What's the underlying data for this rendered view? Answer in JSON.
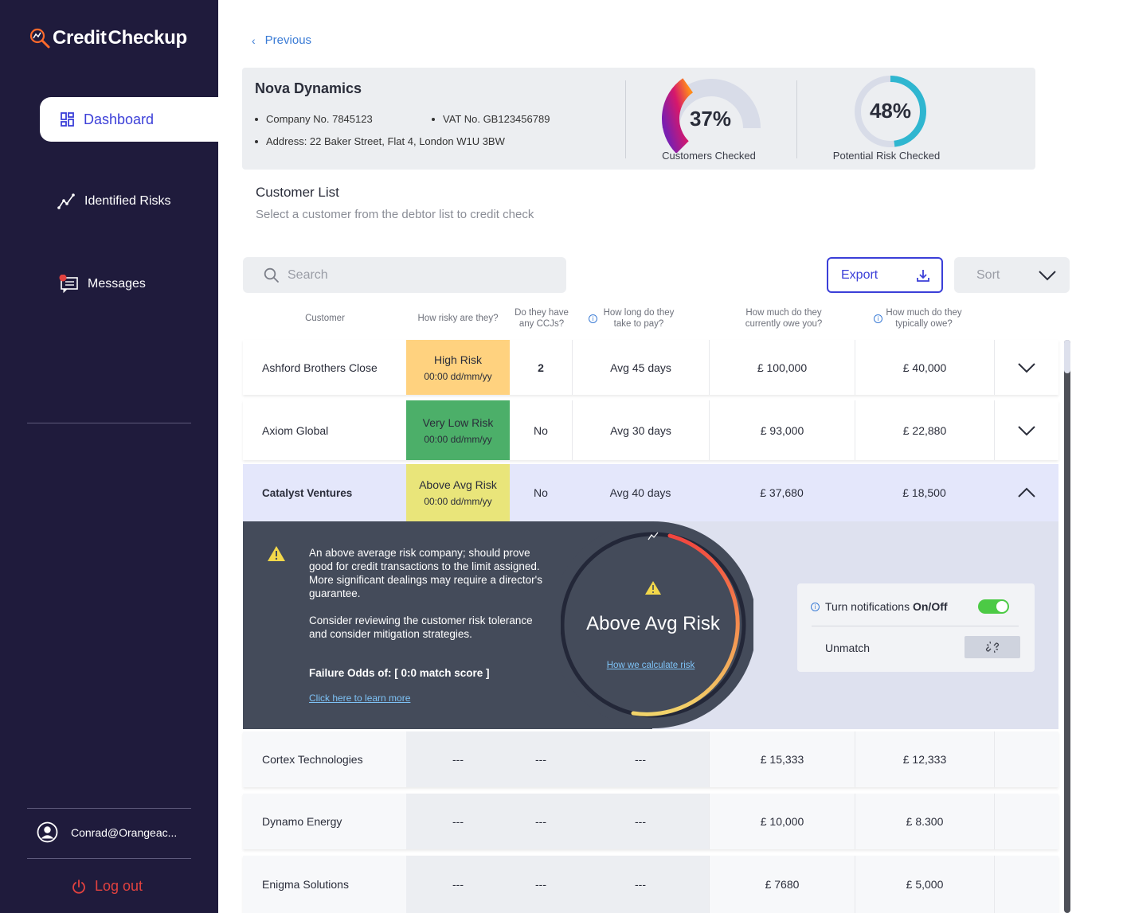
{
  "app": {
    "logo_credit": "Credit",
    "logo_checkup": "Checkup"
  },
  "sidebar": {
    "items": [
      {
        "label": "Dashboard",
        "icon": "dashboard-icon",
        "active": true
      },
      {
        "label": "Identified Risks",
        "icon": "trend-icon"
      },
      {
        "label": "Messages",
        "icon": "messages-icon",
        "badge_color": "#e2423f"
      }
    ],
    "user_email": "Conrad@Orangeac...",
    "logout_label": "Log out"
  },
  "nav": {
    "previous_label": "Previous"
  },
  "company": {
    "name": "Nova Dynamics",
    "company_no": "Company No. 7845123",
    "vat_no": "VAT No. GB123456789",
    "address": "Address: 22 Baker Street, Flat 4, London W1U 3BW",
    "customers_checked_value": "37%",
    "customers_checked_label": "Customers Checked",
    "customers_checked_fraction": 0.37,
    "risk_checked_value": "48%",
    "risk_checked_label": "Potential Risk Checked",
    "risk_checked_fraction": 0.48
  },
  "customer_list": {
    "title": "Customer List",
    "subtitle": "Select a customer from the debtor list to credit check",
    "search_placeholder": "Search",
    "export_label": "Export",
    "sort_label": "Sort"
  },
  "table": {
    "headers": {
      "customer": "Customer",
      "risk": "How risky are they?",
      "ccjs_1": "Do they have",
      "ccjs_2": "any CCJs?",
      "pay_1": "How long do they",
      "pay_2": "take to pay?",
      "owe_1": "How much do they",
      "owe_2": "currently owe you?",
      "typ_1": "How much do they",
      "typ_2": "typically owe?"
    },
    "rows": [
      {
        "customer": "Ashford Brothers Close",
        "risk": "High Risk",
        "risk_date": "00:00 dd/mm/yy",
        "risk_color": "#ffd27f",
        "ccjs": "2",
        "pay": "Avg 45 days",
        "owe": "£ 100,000",
        "typical": "£ 40,000"
      },
      {
        "customer": "Axiom Global",
        "risk": "Very Low Risk",
        "risk_date": "00:00 dd/mm/yy",
        "risk_color": "#4caf69",
        "ccjs": "No",
        "pay": "Avg 30 days",
        "owe": "£ 93,000",
        "typical": "£ 22,880"
      },
      {
        "customer": "Catalyst Ventures",
        "risk": "Above Avg Risk",
        "risk_date": "00:00 dd/mm/yy",
        "risk_color": "#e9e57a",
        "ccjs": "No",
        "pay": "Avg 40 days",
        "owe": "£ 37,680",
        "typical": "£ 18,500"
      },
      {
        "customer": "Cortex Technologies",
        "risk": "---",
        "ccjs": "---",
        "pay": "---",
        "owe": "£ 15,333",
        "typical": "£ 12,333"
      },
      {
        "customer": "Dynamo Energy",
        "risk": "---",
        "ccjs": "---",
        "pay": "---",
        "owe": "£ 10,000",
        "typical": "£ 8.300"
      },
      {
        "customer": "Enigma Solutions",
        "risk": "---",
        "ccjs": "---",
        "pay": "---",
        "owe": "£ 7680",
        "typical": "£ 5,000"
      }
    ]
  },
  "detail": {
    "para1": "An above average risk company; should prove good for credit transactions to the limit assigned. More significant dealings may require a director's guarantee.",
    "para2": "Consider reviewing the customer risk tolerance and consider mitigation strategies.",
    "failure_odds": "Failure Odds of: [ 0:0 match score ]",
    "learn_more": "Click here to learn more",
    "risk_title": "Above Avg Risk",
    "calc_link": "How we calculate risk",
    "notif_prefix": "Turn notifications ",
    "notif_bold": "On/Off",
    "notif_on": true,
    "unmatch_label": "Unmatch"
  }
}
